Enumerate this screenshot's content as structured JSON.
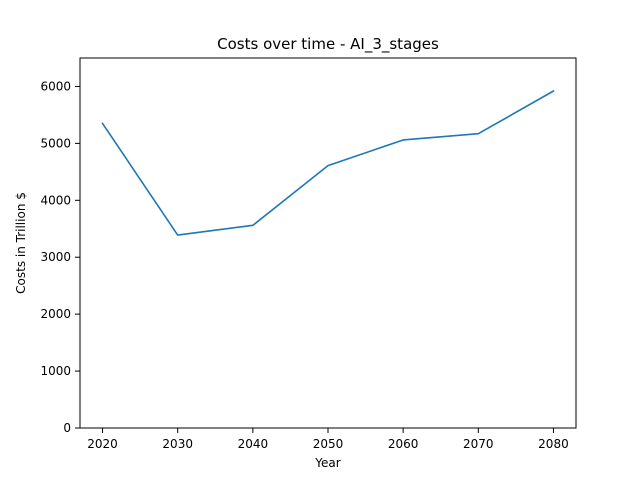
{
  "chart_data": {
    "type": "line",
    "title": "Costs over time - AI_3_stages",
    "xlabel": "Year",
    "ylabel": "Costs in Trillion $",
    "x": [
      2020,
      2030,
      2040,
      2050,
      2060,
      2070,
      2080
    ],
    "series": [
      {
        "values": [
          5350,
          3390,
          3560,
          4610,
          5060,
          5170,
          5920
        ],
        "color": "#1f77b4"
      }
    ],
    "xlim": [
      2017,
      2083
    ],
    "ylim": [
      0,
      6500
    ],
    "xticks": [
      2020,
      2030,
      2040,
      2050,
      2060,
      2070,
      2080
    ],
    "yticks": [
      0,
      1000,
      2000,
      3000,
      4000,
      5000,
      6000
    ],
    "grid": false,
    "legend": "none"
  }
}
